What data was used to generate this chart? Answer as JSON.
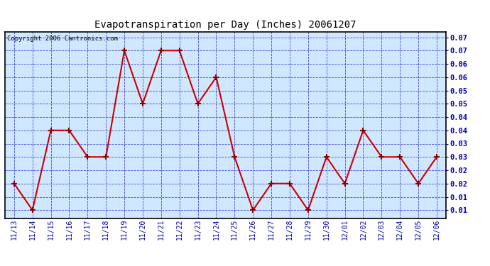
{
  "title": "Evapotranspiration per Day (Inches) 20061207",
  "copyright_text": "Copyright 2006 Cantronics.com",
  "dates": [
    "11/13",
    "11/14",
    "11/15",
    "11/16",
    "11/17",
    "11/18",
    "11/19",
    "11/20",
    "11/21",
    "11/22",
    "11/23",
    "11/24",
    "11/25",
    "11/26",
    "11/27",
    "11/28",
    "11/29",
    "11/30",
    "12/01",
    "12/02",
    "12/03",
    "12/04",
    "12/05",
    "12/06"
  ],
  "values": [
    0.02,
    0.01,
    0.04,
    0.04,
    0.03,
    0.03,
    0.07,
    0.05,
    0.07,
    0.07,
    0.05,
    0.06,
    0.03,
    0.01,
    0.02,
    0.02,
    0.01,
    0.03,
    0.02,
    0.04,
    0.03,
    0.03,
    0.02,
    0.03
  ],
  "line_color": "#cc0000",
  "marker_color": "#880000",
  "background_color": "#d0e8ff",
  "grid_color": "#3333cc",
  "axis_label_color": "#0000aa",
  "title_color": "#000000",
  "copyright_color": "#000000",
  "ylim_min": 0.007,
  "ylim_max": 0.077,
  "ytick_values": [
    0.01,
    0.015,
    0.02,
    0.025,
    0.03,
    0.035,
    0.04,
    0.045,
    0.05,
    0.055,
    0.06,
    0.065,
    0.07,
    0.075
  ],
  "ytick_labels": [
    "0.01",
    "0.01",
    "0.02",
    "0.02",
    "0.03",
    "0.03",
    "0.04",
    "0.04",
    "0.05",
    "0.05",
    "0.06",
    "0.06",
    "0.07",
    "0.07"
  ]
}
